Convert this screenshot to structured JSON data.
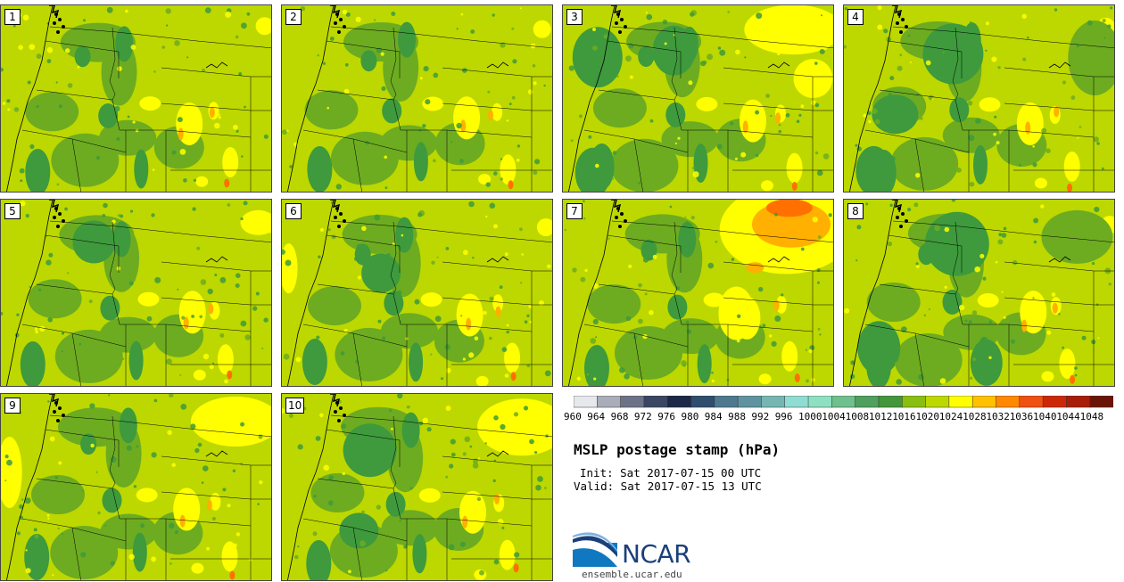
{
  "panels": [
    {
      "label": "1",
      "variant": 0
    },
    {
      "label": "2",
      "variant": 1
    },
    {
      "label": "3",
      "variant": 2
    },
    {
      "label": "4",
      "variant": 3
    },
    {
      "label": "5",
      "variant": 4
    },
    {
      "label": "6",
      "variant": 5
    },
    {
      "label": "7",
      "variant": 6
    },
    {
      "label": "8",
      "variant": 7
    },
    {
      "label": "9",
      "variant": 8
    },
    {
      "label": "10",
      "variant": 9
    }
  ],
  "legend": {
    "ticks": [
      "960",
      "964",
      "968",
      "972",
      "976",
      "980",
      "984",
      "988",
      "992",
      "996",
      "1000",
      "1004",
      "1008",
      "1012",
      "1016",
      "1020",
      "1024",
      "1028",
      "1032",
      "1036",
      "1040",
      "1044",
      "1048"
    ],
    "colors": [
      "#e6e8ec",
      "#a8adb9",
      "#6c7388",
      "#3a4664",
      "#1b2848",
      "#2f4d6e",
      "#4d7890",
      "#5f93a0",
      "#76b6b2",
      "#8fdcd3",
      "#8ee0c3",
      "#6ec08c",
      "#4ea05c",
      "#43963c",
      "#89bf10",
      "#bcd800",
      "#ffff00",
      "#ffc000",
      "#ff8800",
      "#f05010",
      "#cc2808",
      "#a81c08",
      "#6a1406"
    ]
  },
  "title": "MSLP postage stamp (hPa)",
  "init": "Init: Sat 2017-07-15 00 UTC",
  "valid": "Valid: Sat 2017-07-15 13 UTC",
  "logo_text": "NCAR",
  "site": "ensemble.ucar.edu"
}
